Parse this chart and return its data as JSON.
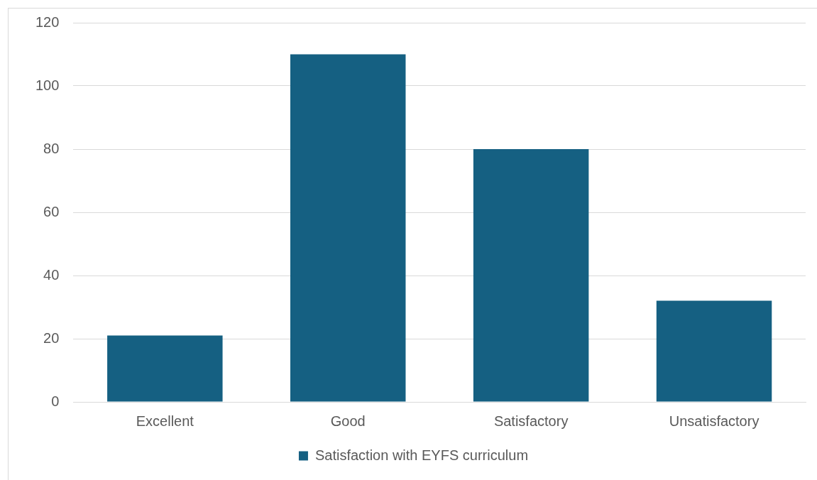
{
  "chart_data": {
    "type": "bar",
    "categories": [
      "Excellent",
      "Good",
      "Satisfactory",
      "Unsatisfactory"
    ],
    "series": [
      {
        "name": "Satisfaction with EYFS curriculum",
        "color": "#156082",
        "values": [
          21,
          110,
          80,
          32
        ]
      }
    ],
    "ylim": [
      0,
      120
    ],
    "yticks": [
      0,
      20,
      40,
      60,
      80,
      100,
      120
    ],
    "grid": "y",
    "legend": "bottom"
  }
}
